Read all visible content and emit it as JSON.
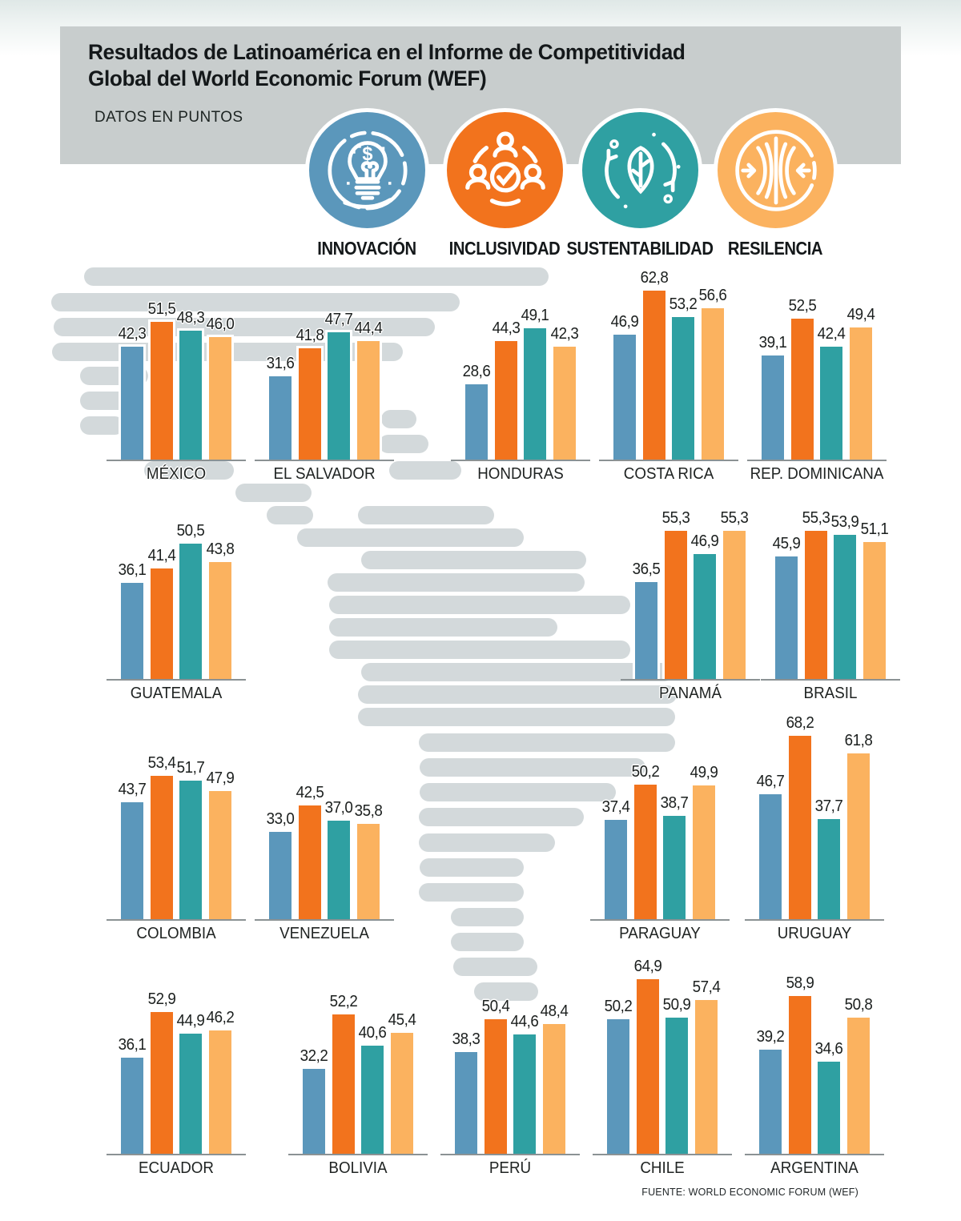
{
  "header": {
    "title_line1": "Resultados de Latinoamérica en el Informe de Competitividad",
    "title_line2": "Global del World Economic Forum (WEF)",
    "subtitle": "DATOS EN PUNTOS"
  },
  "legend": [
    {
      "label": "INNOVACIÓN",
      "color": "#5b97bb",
      "icon": "lightbulb-dollar-icon"
    },
    {
      "label": "INCLUSIVIDAD",
      "color": "#f2731d",
      "icon": "people-check-icon"
    },
    {
      "label": "SUSTENTABILIDAD",
      "color": "#2fa0a2",
      "icon": "leaf-cycle-icon"
    },
    {
      "label": "RESILENCIA",
      "color": "#fbb25f",
      "icon": "converging-arrows-icon"
    }
  ],
  "chart_data": {
    "type": "bar",
    "title": "Resultados de Latinoamérica en el Informe de Competitividad Global del World Economic Forum (WEF)",
    "unit": "puntos",
    "ylim": [
      0,
      70
    ],
    "series_labels": [
      "INNOVACIÓN",
      "INCLUSIVIDAD",
      "SUSTENTABILIDAD",
      "RESILENCIA"
    ],
    "series_colors": [
      "#5b97bb",
      "#f2731d",
      "#2fa0a2",
      "#fbb25f"
    ],
    "decimal_separator": ",",
    "countries": [
      {
        "name": "MÉXICO",
        "values": [
          42.3,
          51.5,
          48.3,
          46.0
        ]
      },
      {
        "name": "EL SALVADOR",
        "values": [
          31.6,
          41.8,
          47.7,
          44.4
        ]
      },
      {
        "name": "HONDURAS",
        "values": [
          28.6,
          44.3,
          49.1,
          42.3
        ]
      },
      {
        "name": "COSTA RICA",
        "values": [
          46.9,
          62.8,
          53.2,
          56.6
        ]
      },
      {
        "name": "REP. DOMINICANA",
        "values": [
          39.1,
          52.5,
          42.4,
          49.4
        ]
      },
      {
        "name": "GUATEMALA",
        "values": [
          36.1,
          41.4,
          50.5,
          43.8
        ]
      },
      {
        "name": "PANAMÁ",
        "values": [
          36.5,
          55.3,
          46.9,
          55.3
        ]
      },
      {
        "name": "BRASIL",
        "values": [
          45.9,
          55.3,
          53.9,
          51.1
        ]
      },
      {
        "name": "COLOMBIA",
        "values": [
          43.7,
          53.4,
          51.7,
          47.9
        ]
      },
      {
        "name": "VENEZUELA",
        "values": [
          33.0,
          42.5,
          37.0,
          35.8
        ]
      },
      {
        "name": "PARAGUAY",
        "values": [
          37.4,
          50.2,
          38.7,
          49.9
        ]
      },
      {
        "name": "URUGUAY",
        "values": [
          46.7,
          68.2,
          37.7,
          61.8
        ]
      },
      {
        "name": "ECUADOR",
        "values": [
          36.1,
          52.9,
          44.9,
          46.2
        ]
      },
      {
        "name": "BOLIVIA",
        "values": [
          32.2,
          52.2,
          40.6,
          45.4
        ]
      },
      {
        "name": "PERÚ",
        "values": [
          38.3,
          50.4,
          44.6,
          48.4
        ]
      },
      {
        "name": "CHILE",
        "values": [
          50.2,
          64.9,
          50.9,
          57.4
        ]
      },
      {
        "name": "ARGENTINA",
        "values": [
          39.2,
          58.9,
          34.6,
          50.8
        ]
      }
    ]
  },
  "footer": {
    "source": "FUENTE: WORLD ECONOMIC FORUM (WEF)"
  }
}
